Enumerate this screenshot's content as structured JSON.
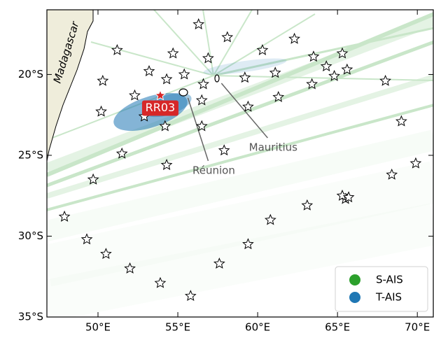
{
  "chart_data": {
    "type": "scatter",
    "land_label": "Madagascar",
    "xlim": [
      46.8,
      71
    ],
    "ylim": [
      -35,
      -16
    ],
    "xticks": [
      {
        "value": 50,
        "label": "50°E"
      },
      {
        "value": 55,
        "label": "55°E"
      },
      {
        "value": 60,
        "label": "60°E"
      },
      {
        "value": 65,
        "label": "65°E"
      },
      {
        "value": 70,
        "label": "70°E"
      }
    ],
    "yticks": [
      {
        "value": -20,
        "label": "20°S"
      },
      {
        "value": -25,
        "label": "25°S"
      },
      {
        "value": -30,
        "label": "30°S"
      },
      {
        "value": -35,
        "label": "35°S"
      }
    ],
    "layers": [
      {
        "name": "S-AIS",
        "color": "#2ca02c"
      },
      {
        "name": "T-AIS",
        "color": "#1f77b4"
      }
    ],
    "legend": "lower right",
    "stations": {
      "x": [
        56.3,
        58.1,
        51.2,
        54.7,
        56.9,
        60.3,
        62.3,
        63.5,
        65.3,
        64.3,
        65.6,
        64.8,
        53.2,
        55.4,
        54.3,
        50.3,
        56.6,
        59.2,
        61.1,
        63.4,
        68.0,
        52.3,
        56.5,
        61.3,
        59.4,
        50.2,
        52.9,
        54.2,
        56.5,
        69.0,
        51.5,
        57.9,
        54.3,
        69.9,
        49.7,
        68.4,
        47.9,
        63.1,
        60.8,
        65.5,
        65.3,
        65.7,
        49.3,
        50.5,
        59.4,
        57.6,
        52.0,
        53.9,
        55.8
      ],
      "y": [
        -16.9,
        -17.7,
        -18.5,
        -18.7,
        -19.0,
        -18.5,
        -17.8,
        -18.9,
        -18.7,
        -19.5,
        -19.7,
        -20.1,
        -19.8,
        -20.0,
        -20.3,
        -20.4,
        -20.6,
        -20.2,
        -19.9,
        -20.6,
        -20.4,
        -21.3,
        -21.6,
        -21.4,
        -22.0,
        -22.3,
        -22.6,
        -23.2,
        -23.2,
        -22.9,
        -24.9,
        -24.7,
        -25.6,
        -25.5,
        -26.5,
        -26.2,
        -28.8,
        -28.1,
        -29.0,
        -27.7,
        -27.5,
        -27.6,
        -30.2,
        -31.1,
        -30.5,
        -31.7,
        -32.0,
        -32.9,
        -33.7
      ]
    },
    "highlight": {
      "label": "RR03",
      "x": 53.9,
      "y": -21.3,
      "color": "#d62728"
    },
    "annotations": [
      {
        "text": "Réunion",
        "x": 55.5,
        "y": -21.1
      },
      {
        "text": "Mauritius",
        "x": 57.6,
        "y": -20.2
      }
    ]
  }
}
